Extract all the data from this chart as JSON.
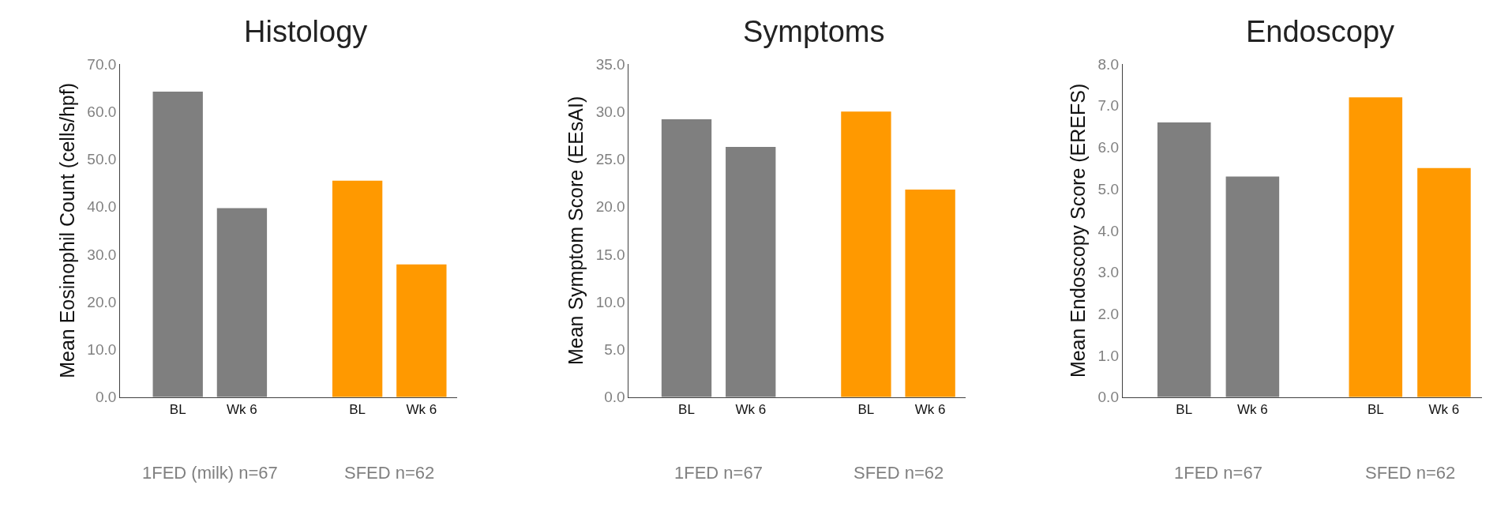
{
  "chart_data": [
    {
      "type": "bar",
      "title": "Histology",
      "ylabel": "Mean Eosinophil Count (cells/hpf)",
      "categories": [
        "BL",
        "Wk 6",
        "BL",
        "Wk 6"
      ],
      "values": [
        64.2,
        39.7,
        45.5,
        27.9
      ],
      "colors": [
        "#7f7f7f",
        "#7f7f7f",
        "#ff9900",
        "#ff9900"
      ],
      "ylim": [
        0,
        70
      ],
      "yticks": [
        {
          "value": 0,
          "label": "0.0"
        },
        {
          "value": 10,
          "label": "10.0"
        },
        {
          "value": 20,
          "label": "20.0"
        },
        {
          "value": 30,
          "label": "30.0"
        },
        {
          "value": 40,
          "label": "40.0"
        },
        {
          "value": 50,
          "label": "50.0"
        },
        {
          "value": 60,
          "label": "60.0"
        },
        {
          "value": 70,
          "label": "70.0"
        }
      ],
      "annotations": [
        "1FED (milk) n=67",
        "SFED n=62"
      ]
    },
    {
      "type": "bar",
      "title": "Symptoms",
      "ylabel": "Mean Symptom Score (EEsAI)",
      "categories": [
        "BL",
        "Wk 6",
        "BL",
        "Wk 6"
      ],
      "values": [
        29.2,
        26.3,
        30.0,
        21.8
      ],
      "colors": [
        "#7f7f7f",
        "#7f7f7f",
        "#ff9900",
        "#ff9900"
      ],
      "ylim": [
        0,
        35
      ],
      "yticks": [
        {
          "value": 0,
          "label": "0.0"
        },
        {
          "value": 5,
          "label": "5.0"
        },
        {
          "value": 10,
          "label": "10.0"
        },
        {
          "value": 15,
          "label": "15.0"
        },
        {
          "value": 20,
          "label": "20.0"
        },
        {
          "value": 25,
          "label": "25.0"
        },
        {
          "value": 30,
          "label": "30.0"
        },
        {
          "value": 35,
          "label": "35.0"
        }
      ],
      "annotations": [
        "1FED n=67",
        "SFED n=62"
      ]
    },
    {
      "type": "bar",
      "title": "Endoscopy",
      "ylabel": "Mean Endoscopy Score (EREFS)",
      "categories": [
        "BL",
        "Wk 6",
        "BL",
        "Wk 6"
      ],
      "values": [
        6.6,
        5.3,
        7.2,
        5.5
      ],
      "colors": [
        "#7f7f7f",
        "#7f7f7f",
        "#ff9900",
        "#ff9900"
      ],
      "ylim": [
        0,
        8
      ],
      "yticks": [
        {
          "value": 0,
          "label": "0.0"
        },
        {
          "value": 1,
          "label": "1.0"
        },
        {
          "value": 2,
          "label": "2.0"
        },
        {
          "value": 3,
          "label": "3.0"
        },
        {
          "value": 4,
          "label": "4.0"
        },
        {
          "value": 5,
          "label": "5.0"
        },
        {
          "value": 6,
          "label": "6.0"
        },
        {
          "value": 7,
          "label": "7.0"
        },
        {
          "value": 8,
          "label": "8.0"
        }
      ],
      "annotations": [
        "1FED n=67",
        "SFED n=62"
      ]
    }
  ]
}
